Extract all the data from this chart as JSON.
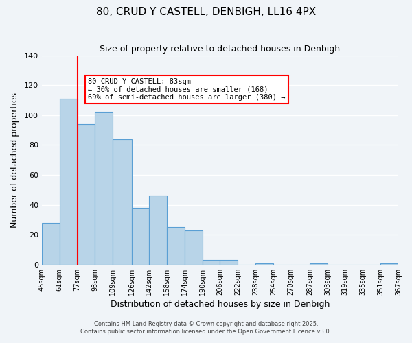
{
  "title": "80, CRUD Y CASTELL, DENBIGH, LL16 4PX",
  "subtitle": "Size of property relative to detached houses in Denbigh",
  "xlabel": "Distribution of detached houses by size in Denbigh",
  "ylabel": "Number of detached properties",
  "bins": [
    45,
    61,
    77,
    93,
    109,
    126,
    142,
    158,
    174,
    190,
    206,
    222,
    238,
    254,
    270,
    287,
    303,
    319,
    335,
    351,
    367
  ],
  "counts": [
    28,
    111,
    94,
    102,
    84,
    38,
    46,
    25,
    23,
    3,
    3,
    0,
    1,
    0,
    0,
    1,
    0,
    0,
    0,
    1
  ],
  "bar_color": "#b8d4e8",
  "bar_edge_color": "#5a9fd4",
  "bar_alpha": 1.0,
  "ylim": [
    0,
    140
  ],
  "yticks": [
    0,
    20,
    40,
    60,
    80,
    100,
    120,
    140
  ],
  "property_value": 83,
  "property_bin_index": 2,
  "red_line_x": 77,
  "annotation_title": "80 CRUD Y CASTELL: 83sqm",
  "annotation_line1": "← 30% of detached houses are smaller (168)",
  "annotation_line2": "69% of semi-detached houses are larger (380) →",
  "footer1": "Contains HM Land Registry data © Crown copyright and database right 2025.",
  "footer2": "Contains public sector information licensed under the Open Government Licence v3.0.",
  "background_color": "#f0f4f8",
  "grid_color": "#ffffff",
  "tick_labels": [
    "45sqm",
    "61sqm",
    "77sqm",
    "93sqm",
    "109sqm",
    "126sqm",
    "142sqm",
    "158sqm",
    "174sqm",
    "190sqm",
    "206sqm",
    "222sqm",
    "238sqm",
    "254sqm",
    "270sqm",
    "287sqm",
    "303sqm",
    "319sqm",
    "335sqm",
    "351sqm",
    "367sqm"
  ]
}
